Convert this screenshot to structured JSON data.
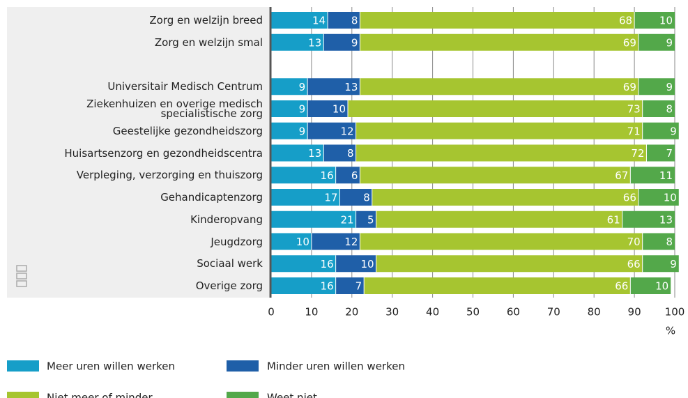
{
  "chart_data": {
    "type": "stacked-bar-horizontal",
    "categories": [
      "Zorg en welzijn breed",
      "Zorg en welzijn smal",
      null,
      "Universitair Medisch Centrum",
      "Ziekenhuizen en overige medisch\nspecialistische zorg",
      "Geestelijke gezondheidszorg",
      "Huisartsenzorg en gezondheidscentra",
      "Verpleging, verzorging en thuiszorg",
      "Gehandicaptenzorg",
      "Kinderopvang",
      "Jeugdzorg",
      "Sociaal werk",
      "Overige zorg"
    ],
    "series": [
      {
        "name": "Meer uren willen werken",
        "color": "#169ec8",
        "values": [
          14,
          13,
          null,
          9,
          9,
          9,
          13,
          16,
          17,
          21,
          10,
          16,
          16
        ]
      },
      {
        "name": "Minder uren willen werken",
        "color": "#1f5fa8",
        "values": [
          8,
          9,
          null,
          13,
          10,
          12,
          8,
          6,
          8,
          5,
          12,
          10,
          7
        ]
      },
      {
        "name": "Niet meer of minder",
        "color": "#a6c530",
        "values": [
          68,
          69,
          null,
          69,
          73,
          71,
          72,
          67,
          66,
          61,
          70,
          66,
          66
        ]
      },
      {
        "name": "Weet niet",
        "color": "#53a84a",
        "values": [
          10,
          9,
          null,
          9,
          8,
          9,
          7,
          11,
          10,
          13,
          8,
          9,
          10
        ]
      }
    ],
    "xlabel": "%",
    "xlim": [
      0,
      100
    ],
    "xticks": [
      0,
      10,
      20,
      30,
      40,
      50,
      60,
      70,
      80,
      90,
      100
    ],
    "grid": true
  }
}
